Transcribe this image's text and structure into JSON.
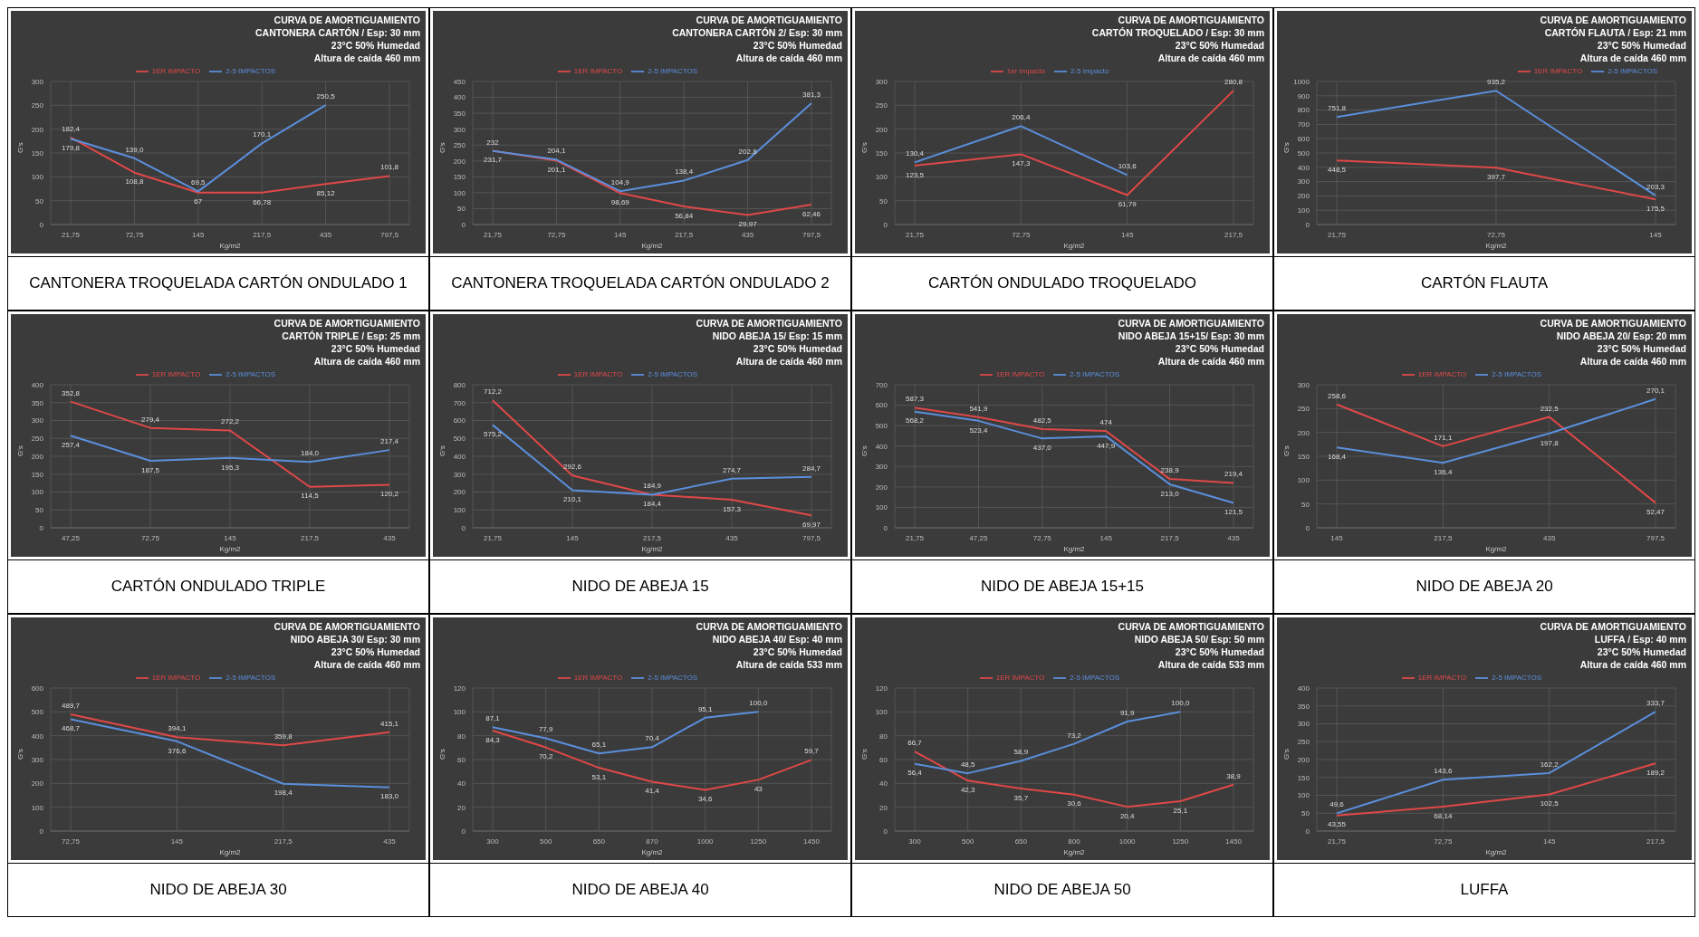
{
  "chart_data": [
    {
      "type": "line",
      "title": "CURVA DE AMORTIGUAMIENTO",
      "subtitle": "CANTONERA CARTÓN / Esp: 30 mm",
      "annotations": [
        "23°C 50% Humedad",
        "Altura de caída 460 mm",
        "CANTONERA TROQUELADA CARTÓN ONDULADO 1"
      ],
      "xlabel": "Kg/m2",
      "ylabel": "G's",
      "categories": [
        "21,75",
        "72,75",
        "145",
        "217,5",
        "435",
        "797,5"
      ],
      "ylim": [
        0,
        300
      ],
      "yticks": [
        0,
        50,
        100,
        150,
        200,
        250,
        300
      ],
      "grid": true,
      "legend": "top",
      "marker": "none",
      "line_style": "solid",
      "series": [
        {
          "name": "1ER IMPACTO",
          "color": "#e04848",
          "values": [
            182.4,
            108.8,
            67,
            66.78,
            85.12,
            101.8
          ],
          "value_labels": [
            "182,4",
            "108,8",
            "67",
            "66,78",
            "85,12",
            "101,8"
          ]
        },
        {
          "name": "2-5 IMPACTOS",
          "color": "#5b8fdc",
          "values": [
            179.8,
            139.0,
            69.5,
            170.1,
            250.5,
            null
          ],
          "value_labels": [
            "179,8",
            "139,0",
            "69,5",
            "170,1",
            "250,5",
            null
          ]
        }
      ]
    },
    {
      "type": "line",
      "title": "CURVA DE AMORTIGUAMIENTO",
      "subtitle": "CANTONERA CARTÓN 2/ Esp: 30 mm",
      "annotations": [
        "23°C 50% Humedad",
        "Altura de caída 460 mm",
        "CANTONERA TROQUELADA CARTÓN ONDULADO 2"
      ],
      "xlabel": "Kg/m2",
      "ylabel": "G's",
      "categories": [
        "21,75",
        "72,75",
        "145",
        "217,5",
        "435",
        "797,5"
      ],
      "ylim": [
        0,
        450
      ],
      "yticks": [
        0,
        50,
        100,
        150,
        200,
        250,
        300,
        350,
        400,
        450
      ],
      "grid": true,
      "legend": "top",
      "marker": "none",
      "line_style": "solid",
      "series": [
        {
          "name": "1ER IMPACTO",
          "color": "#e04848",
          "values": [
            232,
            201.1,
            98.69,
            56.84,
            29.97,
            62.46
          ],
          "value_labels": [
            "232",
            "201,1",
            "98,69",
            "56,84",
            "29,97",
            "62,46"
          ]
        },
        {
          "name": "2-5 IMPACTOS",
          "color": "#5b8fdc",
          "values": [
            231.7,
            204.1,
            104.9,
            138.4,
            202.8,
            381.3
          ],
          "value_labels": [
            "231,7",
            "204,1",
            "104,9",
            "138,4",
            "202,8",
            "381,3"
          ]
        }
      ]
    },
    {
      "type": "line",
      "title": "CURVA DE AMORTIGUAMIENTO",
      "subtitle": "CARTÓN TROQUELADO / Esp: 30 mm",
      "annotations": [
        "23°C 50% Humedad",
        "Altura de caída 460 mm",
        "CARTÓN ONDULADO TROQUELADO"
      ],
      "xlabel": "Kg/m2",
      "ylabel": "G's",
      "categories": [
        "21,75",
        "72,75",
        "145",
        "217,5"
      ],
      "ylim": [
        0,
        300
      ],
      "yticks": [
        0,
        50,
        100,
        150,
        200,
        250,
        300
      ],
      "grid": true,
      "legend": "top",
      "marker": "none",
      "line_style": "solid",
      "series": [
        {
          "name": "1er Impacto",
          "color": "#e04848",
          "values": [
            123.5,
            147.3,
            61.79,
            280.8
          ],
          "value_labels": [
            "123,5",
            "147,3",
            "61,79",
            "280,8"
          ]
        },
        {
          "name": "2-5 Impacto",
          "color": "#5b8fdc",
          "values": [
            130.4,
            206.4,
            103.6,
            null
          ],
          "value_labels": [
            "130,4",
            "206,4",
            "103,6",
            null
          ]
        }
      ]
    },
    {
      "type": "line",
      "title": "CURVA DE AMORTIGUAMIENTO",
      "subtitle": "CARTÓN FLAUTA / Esp: 21 mm",
      "annotations": [
        "23°C 50% Humedad",
        "Altura de caída 460 mm",
        "CARTÓN FLAUTA"
      ],
      "xlabel": "Kg/m2",
      "ylabel": "G's",
      "categories": [
        "21,75",
        "72,75",
        "145"
      ],
      "ylim": [
        0,
        1000
      ],
      "yticks": [
        0,
        100,
        200,
        300,
        400,
        500,
        600,
        700,
        800,
        900,
        1000
      ],
      "grid": true,
      "legend": "top right",
      "marker": "none",
      "line_style": "solid",
      "series": [
        {
          "name": "1ER IMPACTO",
          "color": "#e04848",
          "values": [
            448.5,
            397.7,
            175.5
          ],
          "value_labels": [
            "448,5",
            "397,7",
            "175,5"
          ]
        },
        {
          "name": "2-5 IMPACTOS",
          "color": "#5b8fdc",
          "values": [
            751.8,
            935.2,
            203.3
          ],
          "value_labels": [
            "751,8",
            "935,2",
            "203,3"
          ]
        }
      ]
    },
    {
      "type": "line",
      "title": "CURVA DE AMORTIGUAMIENTO",
      "subtitle": "CARTÓN TRIPLE / Esp: 25 mm",
      "annotations": [
        "23°C 50% Humedad",
        "Altura de caída 460 mm",
        "CARTÓN ONDULADO TRIPLE"
      ],
      "xlabel": "Kg/m2",
      "ylabel": "G's",
      "categories": [
        "47,25",
        "72,75",
        "145",
        "217,5",
        "435"
      ],
      "ylim": [
        0,
        400
      ],
      "yticks": [
        0,
        50,
        100,
        150,
        200,
        250,
        300,
        350,
        400
      ],
      "grid": true,
      "legend": "top",
      "marker": "none",
      "line_style": "solid",
      "series": [
        {
          "name": "1ER IMPACTO",
          "color": "#e04848",
          "values": [
            352.8,
            279.4,
            272.2,
            114.5,
            120.2
          ],
          "value_labels": [
            "352,8",
            "279,4",
            "272,2",
            "114,5",
            "120,2"
          ]
        },
        {
          "name": "2-5 IMPACTOS",
          "color": "#5b8fdc",
          "values": [
            257.4,
            187.5,
            195.3,
            184.0,
            217.4
          ],
          "value_labels": [
            "257,4",
            "187,5",
            "195,3",
            "184,0",
            "217,4"
          ]
        }
      ]
    },
    {
      "type": "line",
      "title": "CURVA DE AMORTIGUAMIENTO",
      "subtitle": "NIDO ABEJA 15/ Esp: 15 mm",
      "annotations": [
        "23°C 50% Humedad",
        "Altura de caída 460 mm",
        "NIDO DE ABEJA 15"
      ],
      "xlabel": "Kg/m2",
      "ylabel": "G's",
      "categories": [
        "21,75",
        "145",
        "217,5",
        "435",
        "797,5"
      ],
      "ylim": [
        0,
        800
      ],
      "yticks": [
        0,
        100,
        200,
        300,
        400,
        500,
        600,
        700,
        800
      ],
      "grid": true,
      "legend": "top",
      "marker": "none",
      "line_style": "solid",
      "series": [
        {
          "name": "1ER IMPACTO",
          "color": "#e04848",
          "values": [
            712.2,
            292.6,
            184.9,
            157.3,
            69.97
          ],
          "value_labels": [
            "712,2",
            "292,6",
            "184,9",
            "157,3",
            "69,97"
          ]
        },
        {
          "name": "2-5 IMPACTOS",
          "color": "#5b8fdc",
          "values": [
            575.2,
            210.1,
            184.4,
            274.7,
            284.7
          ],
          "value_labels": [
            "575,2",
            "210,1",
            "184,4",
            "274,7",
            "284,7"
          ]
        }
      ]
    },
    {
      "type": "line",
      "title": "CURVA DE AMORTIGUAMIENTO",
      "subtitle": "NIDO ABEJA 15+15/ Esp: 30 mm",
      "annotations": [
        "23°C 50% Humedad",
        "Altura de caída 460 mm",
        "NIDO DE ABEJA 15+15"
      ],
      "xlabel": "Kg/m2",
      "ylabel": "G's",
      "categories": [
        "21,75",
        "47,25",
        "72,75",
        "145",
        "217,5",
        "435"
      ],
      "ylim": [
        0,
        700
      ],
      "yticks": [
        0,
        100,
        200,
        300,
        400,
        500,
        600,
        700
      ],
      "grid": true,
      "legend": "top",
      "marker": "none",
      "line_style": "solid",
      "series": [
        {
          "name": "1ER IMPACTO",
          "color": "#e04848",
          "values": [
            587.3,
            541.9,
            482.5,
            474,
            238.9,
            219.4
          ],
          "value_labels": [
            "587,3",
            "541,9",
            "482,5",
            "474",
            "238,9",
            "219,4"
          ]
        },
        {
          "name": "2-5 IMPACTOS",
          "color": "#5b8fdc",
          "values": [
            568.2,
            523.4,
            437.0,
            447.9,
            213.0,
            121.5
          ],
          "value_labels": [
            "568,2",
            "523,4",
            "437,0",
            "447,9",
            "213,0",
            "121,5"
          ]
        }
      ]
    },
    {
      "type": "line",
      "title": "CURVA DE AMORTIGUAMIENTO",
      "subtitle": "NIDO ABEJA 20/ Esp: 20 mm",
      "annotations": [
        "23°C 50% Humedad",
        "Altura de caída 460 mm",
        "NIDO DE ABEJA 20"
      ],
      "xlabel": "Kg/m2",
      "ylabel": "G's",
      "categories": [
        "145",
        "217,5",
        "435",
        "797,5"
      ],
      "ylim": [
        0,
        300
      ],
      "yticks": [
        0,
        50,
        100,
        150,
        200,
        250,
        300
      ],
      "grid": true,
      "legend": "top",
      "marker": "none",
      "line_style": "solid",
      "series": [
        {
          "name": "1ER IMPACTO",
          "color": "#e04848",
          "values": [
            258.6,
            171.1,
            232.5,
            52.47
          ],
          "value_labels": [
            "258,6",
            "171,1",
            "232,5",
            "52,47"
          ]
        },
        {
          "name": "2-5 IMPACTOS",
          "color": "#5b8fdc",
          "values": [
            168.4,
            136.4,
            197.8,
            270.1
          ],
          "value_labels": [
            "168,4",
            "136,4",
            "197,8",
            "270,1"
          ]
        }
      ]
    },
    {
      "type": "line",
      "title": "CURVA DE AMORTIGUAMIENTO",
      "subtitle": "NIDO ABEJA 30/ Esp: 30 mm",
      "annotations": [
        "23°C 50% Humedad",
        "Altura de caída 460 mm",
        "NIDO DE ABEJA 30"
      ],
      "xlabel": "Kg/m2",
      "ylabel": "G's",
      "categories": [
        "72,75",
        "145",
        "217,5",
        "435"
      ],
      "ylim": [
        0,
        600
      ],
      "yticks": [
        0,
        100,
        200,
        300,
        400,
        500,
        600
      ],
      "grid": true,
      "legend": "top",
      "marker": "none",
      "line_style": "solid",
      "series": [
        {
          "name": "1ER IMPACTO",
          "color": "#e04848",
          "values": [
            489.7,
            394.1,
            359.8,
            415.1
          ],
          "value_labels": [
            "489,7",
            "394,1",
            "359,8",
            "415,1"
          ]
        },
        {
          "name": "2-5 IMPACTOS",
          "color": "#5b8fdc",
          "values": [
            468.7,
            376.6,
            198.4,
            183.0
          ],
          "value_labels": [
            "468,7",
            "376,6",
            "198,4",
            "183,0"
          ]
        }
      ]
    },
    {
      "type": "line",
      "title": "CURVA DE AMORTIGUAMIENTO",
      "subtitle": "NIDO ABEJA 40/ Esp: 40 mm",
      "annotations": [
        "23°C 50% Humedad",
        "Altura de caída 533 mm",
        "NIDO DE ABEJA 40"
      ],
      "xlabel": "Kg/m2",
      "ylabel": "G's",
      "categories": [
        "300",
        "500",
        "650",
        "870",
        "1000",
        "1250",
        "1450"
      ],
      "ylim": [
        0,
        120
      ],
      "yticks": [
        0,
        20,
        40,
        60,
        80,
        100,
        120
      ],
      "grid": true,
      "legend": "top",
      "marker": "none",
      "line_style": "solid",
      "series": [
        {
          "name": "1ER IMPACTO",
          "color": "#e04848",
          "values": [
            84.3,
            70.2,
            53.1,
            41.4,
            34.6,
            43,
            59.7
          ],
          "value_labels": [
            "84,3",
            "70,2",
            "53,1",
            "41,4",
            "34,6",
            "43",
            "59,7"
          ]
        },
        {
          "name": "2-5 IMPACTOS",
          "color": "#5b8fdc",
          "values": [
            87.1,
            77.9,
            65.1,
            70.4,
            95.1,
            100.0,
            null
          ],
          "value_labels": [
            "87,1",
            "77,9",
            "65,1",
            "70,4",
            "95,1",
            "100,0",
            null
          ]
        }
      ]
    },
    {
      "type": "line",
      "title": "CURVA DE AMORTIGUAMIENTO",
      "subtitle": "NIDO ABEJA 50/ Esp: 50 mm",
      "annotations": [
        "23°C 50% Humedad",
        "Altura de caída 533 mm",
        "NIDO DE ABEJA 50"
      ],
      "xlabel": "Kg/m2",
      "ylabel": "G's",
      "categories": [
        "300",
        "500",
        "650",
        "800",
        "1000",
        "1250",
        "1450"
      ],
      "ylim": [
        0,
        120
      ],
      "yticks": [
        0,
        20,
        40,
        60,
        80,
        100,
        120
      ],
      "grid": true,
      "legend": "top",
      "marker": "none",
      "line_style": "solid",
      "series": [
        {
          "name": "1ER IMPACTO",
          "color": "#e04848",
          "values": [
            66.7,
            42.3,
            35.7,
            30.6,
            20.4,
            25.1,
            38.9
          ],
          "value_labels": [
            "66,7",
            "42,3",
            "35,7",
            "30,6",
            "20,4",
            "25,1",
            "38,9"
          ]
        },
        {
          "name": "2-5 IMPACTOS",
          "color": "#5b8fdc",
          "values": [
            56.4,
            48.5,
            58.9,
            73.2,
            91.9,
            100.0,
            null
          ],
          "value_labels": [
            "56,4",
            "48,5",
            "58,9",
            "73,2",
            "91,9",
            "100,0",
            null
          ]
        }
      ]
    },
    {
      "type": "line",
      "title": "CURVA DE AMORTIGUAMIENTO",
      "subtitle": "LUFFA / Esp: 40 mm",
      "annotations": [
        "23°C 50% Humedad",
        "Altura de caída 460 mm",
        "LUFFA"
      ],
      "xlabel": "Kg/m2",
      "ylabel": "G's",
      "categories": [
        "21,75",
        "72,75",
        "145",
        "217,5"
      ],
      "ylim": [
        0,
        400
      ],
      "yticks": [
        0,
        50,
        100,
        150,
        200,
        250,
        300,
        350,
        400
      ],
      "grid": true,
      "legend": "top",
      "marker": "none",
      "line_style": "solid",
      "series": [
        {
          "name": "1ER IMPACTO",
          "color": "#e04848",
          "values": [
            43.55,
            68.14,
            102.5,
            189.2
          ],
          "value_labels": [
            "43,55",
            "68,14",
            "102,5",
            "189,2"
          ]
        },
        {
          "name": "2-5 IMPACTOS",
          "color": "#5b8fdc",
          "values": [
            49.6,
            143.6,
            162.2,
            333.7
          ],
          "value_labels": [
            "49,6",
            "143,6",
            "162,2",
            "333,7"
          ]
        }
      ]
    }
  ]
}
